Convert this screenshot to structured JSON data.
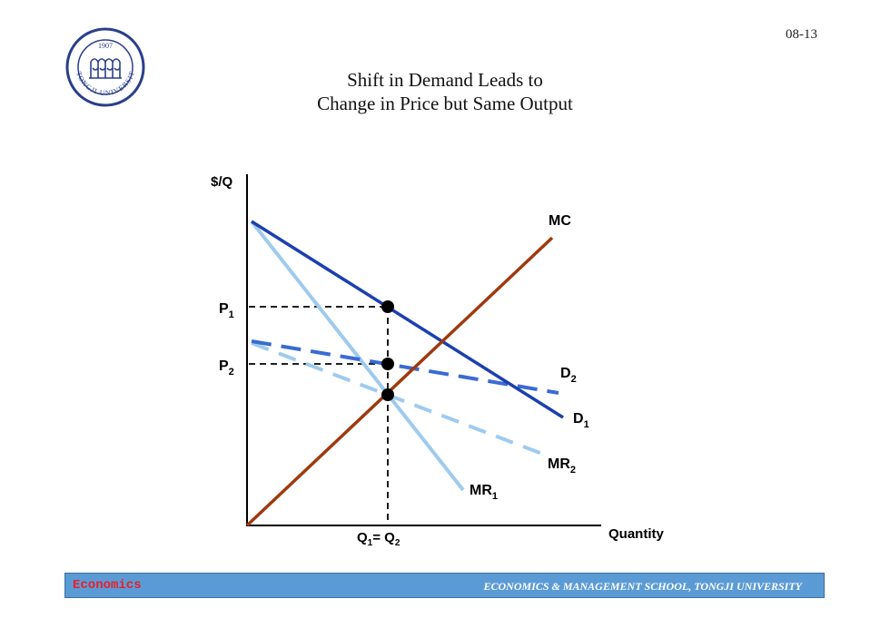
{
  "slide": {
    "number": "08-13",
    "title_line1": "Shift in Demand Leads to",
    "title_line2": "Change in Price but Same Output",
    "logo": {
      "year": "1907",
      "ring_text": "TONGJI UNIVERSITY",
      "colors": {
        "ring": "#2a3f8c"
      }
    }
  },
  "diagram": {
    "y_axis_label": "$/Q",
    "x_axis_label": "Quantity",
    "curves": {
      "mc": {
        "name": "MC",
        "sub": "",
        "color": "#9e3a0f"
      },
      "d1": {
        "name": "D",
        "sub": "1",
        "color": "#1c3fb0"
      },
      "mr1": {
        "name": "MR",
        "sub": "1",
        "color": "#9ecbee"
      },
      "d2": {
        "name": "D",
        "sub": "2",
        "color": "#3a6ad4"
      },
      "mr2": {
        "name": "MR",
        "sub": "2",
        "color": "#9ecbee"
      }
    },
    "price_labels": {
      "p1": {
        "name": "P",
        "sub": "1"
      },
      "p2": {
        "name": "P",
        "sub": "2"
      }
    },
    "quantity_label": {
      "q1": "Q",
      "q1_sub": "1",
      "eq": "= ",
      "q2": "Q",
      "q2_sub": "2"
    }
  },
  "footer": {
    "left": "Economics",
    "right": "ECONOMICS & MANAGEMENT SCHOOL, TONGJI UNIVERSITY",
    "colors": {
      "bar": "#5b9bd5",
      "left_text": "#e8202a",
      "right_text": "#ffffff"
    }
  }
}
